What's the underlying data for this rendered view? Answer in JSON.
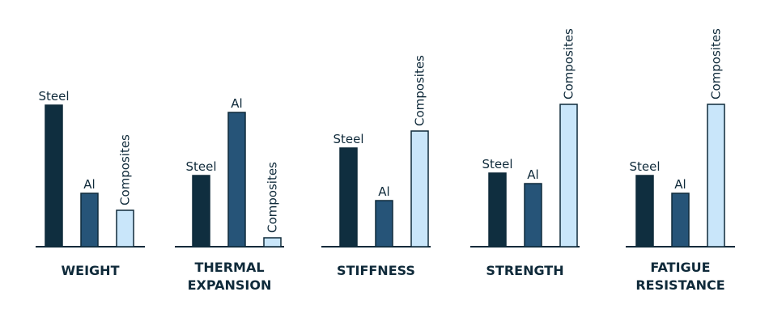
{
  "chart_data": {
    "type": "bar",
    "colors": {
      "steel": "#0f2e3f",
      "al": "#265478",
      "composites": "#c9e6fa",
      "stroke": "#0f2a3a",
      "axis": "#0f2a3a"
    },
    "groups": [
      {
        "title": [
          "WEIGHT"
        ],
        "bars": [
          {
            "label": "Steel",
            "value": 175,
            "material": "steel"
          },
          {
            "label": "Al",
            "value": 66,
            "material": "al"
          },
          {
            "label": "Composites",
            "value": 45,
            "material": "composites"
          }
        ]
      },
      {
        "title": [
          "THERMAL",
          "EXPANSION"
        ],
        "bars": [
          {
            "label": "Steel",
            "value": 88,
            "material": "steel"
          },
          {
            "label": "Al",
            "value": 166,
            "material": "al"
          },
          {
            "label": "Composites",
            "value": 11,
            "material": "composites"
          }
        ]
      },
      {
        "title": [
          "STIFFNESS"
        ],
        "bars": [
          {
            "label": "Steel",
            "value": 122,
            "material": "steel"
          },
          {
            "label": "Al",
            "value": 57,
            "material": "al"
          },
          {
            "label": "Composites",
            "value": 143,
            "material": "composites"
          }
        ]
      },
      {
        "title": [
          "STRENGTH"
        ],
        "bars": [
          {
            "label": "Steel",
            "value": 91,
            "material": "steel"
          },
          {
            "label": "Al",
            "value": 78,
            "material": "al"
          },
          {
            "label": "Composites",
            "value": 176,
            "material": "composites"
          }
        ]
      },
      {
        "title": [
          "FATIGUE",
          "RESISTANCE"
        ],
        "bars": [
          {
            "label": "Steel",
            "value": 88,
            "material": "steel"
          },
          {
            "label": "Al",
            "value": 66,
            "material": "al"
          },
          {
            "label": "Composites",
            "value": 176,
            "material": "composites"
          }
        ]
      }
    ]
  }
}
